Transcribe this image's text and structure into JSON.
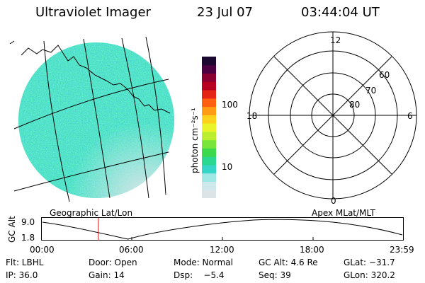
{
  "header": {
    "instrument": "Ultraviolet Imager",
    "date": "23 Jul 07",
    "time": "03:44:04 UT"
  },
  "colorbar": {
    "label": "photon cm⁻²s⁻¹",
    "ticks": [
      "100",
      "10"
    ],
    "colors": [
      "#dde4e8",
      "#cfe8ec",
      "#9fe8e6",
      "#35d6c8",
      "#2ad98f",
      "#3bd94b",
      "#79e43a",
      "#b9ef2e",
      "#e9f52a",
      "#ffd21e",
      "#ff9b14",
      "#ff5f10",
      "#e42515",
      "#b8001f",
      "#8a0030",
      "#4c0042",
      "#1a0830"
    ]
  },
  "polar": {
    "mlt_labels": {
      "top": "12",
      "left": "18",
      "right": "6",
      "bottom": "0"
    },
    "lat_labels": [
      "60",
      "70",
      "80"
    ]
  },
  "panels": {
    "left_caption": "Geographic Lat/Lon",
    "right_caption": "Apex MLat/MLT"
  },
  "altitude": {
    "ylabel": "GC Alt",
    "ymax_label": "9.0",
    "ymin_label": "1.8",
    "xticks": [
      "00:00",
      "06:00",
      "12:00",
      "18:00",
      "23:59"
    ],
    "marker_time": "03:44"
  },
  "info": {
    "filter": "Flt: LBHL",
    "door": "Door: Open",
    "mode": "Mode: Normal",
    "gc_alt": "GC Alt: 4.6 Re",
    "glat": "GLat: −31.7",
    "ip": "IP: 36.0",
    "gain": "Gain: 14",
    "dsp": "Dsp:    −5.4",
    "seq": "Seq: 39",
    "glon": "GLon: 320.2"
  }
}
